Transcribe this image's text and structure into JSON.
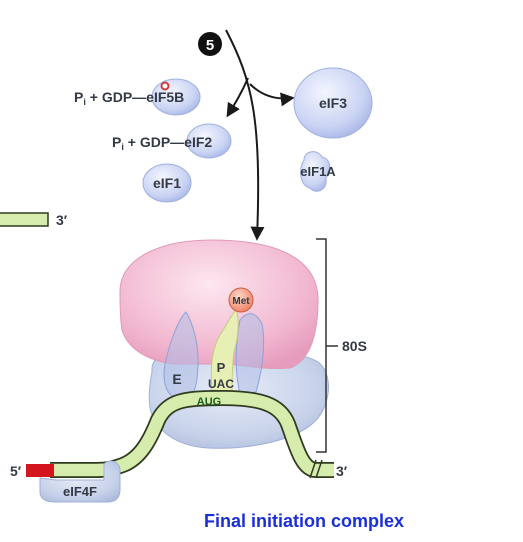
{
  "diagram": {
    "step_number": "5",
    "released_factors": {
      "pi": "P",
      "pi_sub": "i",
      "gdp_text": " + GDP—",
      "eif5b": "eIF5B",
      "eif2": "eIF2",
      "eif1": "eIF1",
      "eif3": "eIF3",
      "eif1a": "eIF1A"
    },
    "upper_mrna_end": "3′",
    "ribosome": {
      "size_label": "80S",
      "e_site": "E",
      "p_site": "P",
      "anticodon": "UAC",
      "codon": "AUG",
      "amino_acid": "Met"
    },
    "mrna": {
      "five_prime": "5′",
      "three_prime": "3′",
      "cap_binding": "eIF4F"
    },
    "caption": "Final initiation complex"
  }
}
